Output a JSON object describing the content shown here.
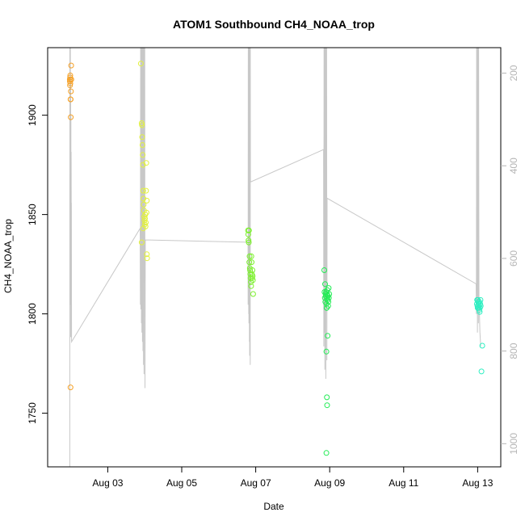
{
  "chart_data": {
    "type": "scatter",
    "title": "ATOM1 Southbound CH4_NOAA_trop",
    "xlabel": "Date",
    "ylabel": "CH4_NOAA_trop",
    "xlim": [
      "2016-08-01T09:00",
      "2016-08-13T15:00"
    ],
    "ylim": [
      1723,
      1934
    ],
    "y2lim": [
      1050,
      145
    ],
    "x_ticks": [
      "Aug 03",
      "Aug 05",
      "Aug 07",
      "Aug 09",
      "Aug 11",
      "Aug 13"
    ],
    "x_tick_dates": [
      "2016-08-03",
      "2016-08-05",
      "2016-08-07",
      "2016-08-09",
      "2016-08-11",
      "2016-08-13"
    ],
    "y_ticks": [
      1750,
      1800,
      1850,
      1900
    ],
    "y2_ticks": [
      200,
      400,
      600,
      800,
      1000
    ],
    "y2_reversed": true,
    "grid": false,
    "legend": "none",
    "point_colors": [
      "#f5a128",
      "#e3f23c",
      "#7bf02c",
      "#22ec55",
      "#2fefc2"
    ],
    "line_color": "#c8c8c8",
    "series": [
      {
        "flight": 1,
        "color": "#f5a128",
        "points": [
          [
            "2016-08-01T23:20",
            1918
          ],
          [
            "2016-08-01T23:25",
            1917
          ],
          [
            "2016-08-01T23:30",
            1915
          ],
          [
            "2016-08-01T23:35",
            1919
          ],
          [
            "2016-08-01T23:40",
            1920
          ],
          [
            "2016-08-01T23:45",
            1916
          ],
          [
            "2016-08-01T23:50",
            1908
          ],
          [
            "2016-08-01T23:55",
            1908
          ],
          [
            "2016-08-02T00:00",
            1899
          ],
          [
            "2016-08-02T00:05",
            1912
          ],
          [
            "2016-08-02T00:10",
            1918
          ],
          [
            "2016-08-02T00:15",
            1925
          ],
          [
            "2016-08-02T00:20",
            1918
          ],
          [
            "2016-08-01T23:50",
            1763
          ]
        ]
      },
      {
        "flight": 2,
        "color": "#e3f23c",
        "points": [
          [
            "2016-08-03T21:30",
            1926
          ],
          [
            "2016-08-03T22:00",
            1896
          ],
          [
            "2016-08-03T22:10",
            1895
          ],
          [
            "2016-08-03T22:20",
            1889
          ],
          [
            "2016-08-03T22:30",
            1885
          ],
          [
            "2016-08-03T22:40",
            1880
          ],
          [
            "2016-08-03T22:50",
            1875
          ],
          [
            "2016-08-03T23:00",
            1862
          ],
          [
            "2016-08-03T23:10",
            1858
          ],
          [
            "2016-08-03T23:20",
            1855
          ],
          [
            "2016-08-03T23:30",
            1852
          ],
          [
            "2016-08-03T23:40",
            1849
          ],
          [
            "2016-08-03T23:50",
            1847
          ],
          [
            "2016-08-04T00:00",
            1845
          ],
          [
            "2016-08-04T00:10",
            1848
          ],
          [
            "2016-08-04T00:20",
            1850
          ],
          [
            "2016-08-04T00:30",
            1844
          ],
          [
            "2016-08-04T00:40",
            1846
          ],
          [
            "2016-08-04T00:50",
            1862
          ],
          [
            "2016-08-04T01:00",
            1876
          ],
          [
            "2016-08-04T01:10",
            1851
          ],
          [
            "2016-08-04T01:20",
            1830
          ],
          [
            "2016-08-04T01:30",
            1828
          ],
          [
            "2016-08-03T22:00",
            1836
          ],
          [
            "2016-08-04T01:20",
            1857
          ],
          [
            "2016-08-03T23:00",
            1843
          ]
        ]
      },
      {
        "flight": 3,
        "color": "#7bf02c",
        "points": [
          [
            "2016-08-06T19:00",
            1842
          ],
          [
            "2016-08-06T19:10",
            1840
          ],
          [
            "2016-08-06T19:20",
            1837
          ],
          [
            "2016-08-06T19:30",
            1836
          ],
          [
            "2016-08-06T19:40",
            1842
          ],
          [
            "2016-08-06T19:50",
            1826
          ],
          [
            "2016-08-06T20:00",
            1829
          ],
          [
            "2016-08-06T20:10",
            1823
          ],
          [
            "2016-08-06T20:20",
            1822
          ],
          [
            "2016-08-06T20:30",
            1820
          ],
          [
            "2016-08-06T20:40",
            1818
          ],
          [
            "2016-08-06T20:50",
            1816
          ],
          [
            "2016-08-06T21:00",
            1814
          ],
          [
            "2016-08-06T21:10",
            1829
          ],
          [
            "2016-08-06T21:20",
            1826
          ],
          [
            "2016-08-06T21:30",
            1820
          ],
          [
            "2016-08-06T21:40",
            1818
          ],
          [
            "2016-08-06T21:50",
            1822
          ],
          [
            "2016-08-06T22:00",
            1819
          ],
          [
            "2016-08-06T22:10",
            1817
          ],
          [
            "2016-08-06T22:20",
            1810
          ]
        ]
      },
      {
        "flight": 4,
        "color": "#22ec55",
        "points": [
          [
            "2016-08-08T20:30",
            1822
          ],
          [
            "2016-08-08T20:40",
            1811
          ],
          [
            "2016-08-08T20:50",
            1808
          ],
          [
            "2016-08-08T21:00",
            1815
          ],
          [
            "2016-08-08T21:10",
            1806
          ],
          [
            "2016-08-08T21:20",
            1810
          ],
          [
            "2016-08-08T21:30",
            1809
          ],
          [
            "2016-08-08T21:40",
            1811
          ],
          [
            "2016-08-08T21:50",
            1805
          ],
          [
            "2016-08-08T22:00",
            1803
          ],
          [
            "2016-08-08T22:10",
            1808
          ],
          [
            "2016-08-08T22:20",
            1810
          ],
          [
            "2016-08-08T22:30",
            1812
          ],
          [
            "2016-08-08T22:40",
            1807
          ],
          [
            "2016-08-08T22:50",
            1809
          ],
          [
            "2016-08-08T23:00",
            1804
          ],
          [
            "2016-08-08T23:10",
            1806
          ],
          [
            "2016-08-08T23:20",
            1813
          ],
          [
            "2016-08-08T23:30",
            1808
          ],
          [
            "2016-08-08T23:40",
            1810
          ],
          [
            "2016-08-08T21:50",
            1781
          ],
          [
            "2016-08-08T22:40",
            1789
          ],
          [
            "2016-08-08T22:10",
            1758
          ],
          [
            "2016-08-08T22:20",
            1754
          ],
          [
            "2016-08-08T21:50",
            1730
          ],
          [
            "2016-08-08T22:00",
            1803
          ]
        ]
      },
      {
        "flight": 5,
        "color": "#2fefc2",
        "points": [
          [
            "2016-08-12T23:30",
            1805
          ],
          [
            "2016-08-12T23:40",
            1807
          ],
          [
            "2016-08-12T23:50",
            1804
          ],
          [
            "2016-08-13T00:00",
            1803
          ],
          [
            "2016-08-13T00:10",
            1807
          ],
          [
            "2016-08-13T00:20",
            1806
          ],
          [
            "2016-08-13T00:30",
            1803
          ],
          [
            "2016-08-13T00:40",
            1805
          ],
          [
            "2016-08-13T00:50",
            1804
          ],
          [
            "2016-08-13T01:00",
            1802
          ],
          [
            "2016-08-13T01:10",
            1806
          ],
          [
            "2016-08-13T01:20",
            1801
          ],
          [
            "2016-08-13T01:30",
            1803
          ],
          [
            "2016-08-13T01:40",
            1805
          ],
          [
            "2016-08-13T01:50",
            1807
          ],
          [
            "2016-08-13T02:00",
            1804
          ],
          [
            "2016-08-13T03:00",
            1784
          ],
          [
            "2016-08-13T02:30",
            1771
          ]
        ]
      }
    ],
    "pressure_trace": [
      [
        "2016-08-01T23:20",
        1050
      ],
      [
        "2016-08-01T23:25",
        145
      ],
      [
        "2016-08-01T23:30",
        400
      ],
      [
        "2016-08-01T23:35",
        145
      ],
      [
        "2016-08-01T23:40",
        570
      ],
      [
        "2016-08-01T23:45",
        145
      ],
      [
        "2016-08-01T23:50",
        700
      ],
      [
        "2016-08-01T23:55",
        210
      ],
      [
        "2016-08-02T00:00",
        770
      ],
      [
        "2016-08-02T00:05",
        290
      ],
      [
        "2016-08-02T00:10",
        660
      ],
      [
        "2016-08-02T00:15",
        370
      ],
      [
        "2016-08-02T00:20",
        540
      ],
      [
        "2016-08-02T00:25",
        480
      ],
      [
        "2016-08-02T00:30",
        780
      ],
      [
        "2016-08-03T21:00",
        535
      ],
      [
        "2016-08-03T21:10",
        700
      ],
      [
        "2016-08-03T21:20",
        145
      ],
      [
        "2016-08-03T21:30",
        710
      ],
      [
        "2016-08-03T21:40",
        145
      ],
      [
        "2016-08-03T21:50",
        740
      ],
      [
        "2016-08-03T22:00",
        145
      ],
      [
        "2016-08-03T22:10",
        760
      ],
      [
        "2016-08-03T22:20",
        145
      ],
      [
        "2016-08-03T22:30",
        780
      ],
      [
        "2016-08-03T22:40",
        145
      ],
      [
        "2016-08-03T22:50",
        800
      ],
      [
        "2016-08-03T23:00",
        145
      ],
      [
        "2016-08-03T23:10",
        830
      ],
      [
        "2016-08-03T23:20",
        145
      ],
      [
        "2016-08-03T23:30",
        850
      ],
      [
        "2016-08-03T23:40",
        145
      ],
      [
        "2016-08-03T23:50",
        600
      ],
      [
        "2016-08-04T00:00",
        145
      ],
      [
        "2016-08-04T00:10",
        880
      ],
      [
        "2016-08-04T00:20",
        560
      ],
      [
        "2016-08-06T19:00",
        565
      ],
      [
        "2016-08-06T19:05",
        700
      ],
      [
        "2016-08-06T19:10",
        145
      ],
      [
        "2016-08-06T19:15",
        690
      ],
      [
        "2016-08-06T19:20",
        145
      ],
      [
        "2016-08-06T19:25",
        720
      ],
      [
        "2016-08-06T19:30",
        145
      ],
      [
        "2016-08-06T19:35",
        740
      ],
      [
        "2016-08-06T19:40",
        145
      ],
      [
        "2016-08-06T19:45",
        700
      ],
      [
        "2016-08-06T19:50",
        145
      ],
      [
        "2016-08-06T19:55",
        780
      ],
      [
        "2016-08-06T20:00",
        145
      ],
      [
        "2016-08-06T20:05",
        810
      ],
      [
        "2016-08-06T20:10",
        145
      ],
      [
        "2016-08-06T20:15",
        730
      ],
      [
        "2016-08-06T20:20",
        145
      ],
      [
        "2016-08-06T20:25",
        830
      ],
      [
        "2016-08-06T20:30",
        145
      ],
      [
        "2016-08-06T20:35",
        435
      ],
      [
        "2016-08-08T20:00",
        365
      ],
      [
        "2016-08-08T20:10",
        790
      ],
      [
        "2016-08-08T20:20",
        145
      ],
      [
        "2016-08-08T20:30",
        760
      ],
      [
        "2016-08-08T20:40",
        145
      ],
      [
        "2016-08-08T20:50",
        840
      ],
      [
        "2016-08-08T21:00",
        145
      ],
      [
        "2016-08-08T21:10",
        800
      ],
      [
        "2016-08-08T21:20",
        145
      ],
      [
        "2016-08-08T21:30",
        860
      ],
      [
        "2016-08-08T21:40",
        145
      ],
      [
        "2016-08-08T21:50",
        700
      ],
      [
        "2016-08-08T22:00",
        145
      ],
      [
        "2016-08-08T22:10",
        820
      ],
      [
        "2016-08-08T22:20",
        470
      ],
      [
        "2016-08-12T23:00",
        655
      ],
      [
        "2016-08-12T23:10",
        720
      ],
      [
        "2016-08-12T23:20",
        145
      ],
      [
        "2016-08-12T23:30",
        700
      ],
      [
        "2016-08-12T23:40",
        145
      ],
      [
        "2016-08-12T23:50",
        760
      ],
      [
        "2016-08-13T00:00",
        145
      ],
      [
        "2016-08-13T00:10",
        710
      ],
      [
        "2016-08-13T00:20",
        145
      ],
      [
        "2016-08-13T00:30",
        740
      ],
      [
        "2016-08-13T00:40",
        145
      ],
      [
        "2016-08-13T00:50",
        700
      ],
      [
        "2016-08-13T01:00",
        700
      ],
      [
        "2016-08-13T01:30",
        760
      ],
      [
        "2016-08-13T02:00",
        790
      ]
    ]
  }
}
